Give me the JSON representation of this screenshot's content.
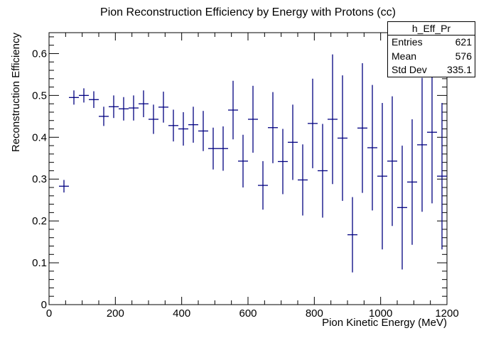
{
  "chart_data": {
    "type": "scatter",
    "title": "Pion Reconstruction Efficiency by Energy with Protons (cc)",
    "xlabel": "Pion Kinetic Energy (MeV)",
    "ylabel": "Reconstruction Efficiency",
    "xlim": [
      0,
      1200
    ],
    "ylim": [
      0,
      0.65
    ],
    "x_ticks": [
      "0",
      "200",
      "400",
      "600",
      "800",
      "1000",
      "1200"
    ],
    "y_ticks": [
      "0",
      "0.1",
      "0.2",
      "0.3",
      "0.4",
      "0.5",
      "0.6"
    ],
    "bin_width": 30,
    "marker_color": "#000080",
    "points": [
      {
        "x": 45,
        "y": 0.283,
        "err": 0.015
      },
      {
        "x": 75,
        "y": 0.495,
        "err": 0.017
      },
      {
        "x": 105,
        "y": 0.5,
        "err": 0.017
      },
      {
        "x": 135,
        "y": 0.49,
        "err": 0.02
      },
      {
        "x": 165,
        "y": 0.45,
        "err": 0.023
      },
      {
        "x": 195,
        "y": 0.473,
        "err": 0.027
      },
      {
        "x": 225,
        "y": 0.468,
        "err": 0.028
      },
      {
        "x": 255,
        "y": 0.47,
        "err": 0.03
      },
      {
        "x": 285,
        "y": 0.48,
        "err": 0.032
      },
      {
        "x": 315,
        "y": 0.443,
        "err": 0.035
      },
      {
        "x": 345,
        "y": 0.472,
        "err": 0.037
      },
      {
        "x": 375,
        "y": 0.428,
        "err": 0.038
      },
      {
        "x": 405,
        "y": 0.42,
        "err": 0.04
      },
      {
        "x": 435,
        "y": 0.43,
        "err": 0.043
      },
      {
        "x": 465,
        "y": 0.415,
        "err": 0.048
      },
      {
        "x": 495,
        "y": 0.373,
        "err": 0.05
      },
      {
        "x": 525,
        "y": 0.373,
        "err": 0.053
      },
      {
        "x": 555,
        "y": 0.465,
        "err": 0.07
      },
      {
        "x": 585,
        "y": 0.343,
        "err": 0.063
      },
      {
        "x": 615,
        "y": 0.443,
        "err": 0.08
      },
      {
        "x": 645,
        "y": 0.285,
        "err": 0.058
      },
      {
        "x": 675,
        "y": 0.423,
        "err": 0.085
      },
      {
        "x": 705,
        "y": 0.342,
        "err": 0.078
      },
      {
        "x": 735,
        "y": 0.388,
        "err": 0.09
      },
      {
        "x": 765,
        "y": 0.298,
        "err": 0.085
      },
      {
        "x": 795,
        "y": 0.433,
        "err": 0.107
      },
      {
        "x": 825,
        "y": 0.32,
        "err": 0.112
      },
      {
        "x": 855,
        "y": 0.443,
        "err": 0.155
      },
      {
        "x": 885,
        "y": 0.398,
        "err": 0.15
      },
      {
        "x": 915,
        "y": 0.167,
        "err": 0.09
      },
      {
        "x": 945,
        "y": 0.422,
        "err": 0.155
      },
      {
        "x": 975,
        "y": 0.375,
        "err": 0.15
      },
      {
        "x": 1005,
        "y": 0.307,
        "err": 0.175
      },
      {
        "x": 1035,
        "y": 0.343,
        "err": 0.155
      },
      {
        "x": 1065,
        "y": 0.232,
        "err": 0.148
      },
      {
        "x": 1095,
        "y": 0.293,
        "err": 0.15
      },
      {
        "x": 1125,
        "y": 0.382,
        "err": 0.16
      },
      {
        "x": 1155,
        "y": 0.412,
        "err": 0.17
      },
      {
        "x": 1185,
        "y": 0.307,
        "err": 0.175
      }
    ]
  },
  "stats": {
    "title": "h_Eff_Pr",
    "rows": [
      {
        "label": "Entries",
        "value": "621"
      },
      {
        "label": "Mean",
        "value": "576"
      },
      {
        "label": "Std Dev",
        "value": "335.1"
      }
    ]
  }
}
